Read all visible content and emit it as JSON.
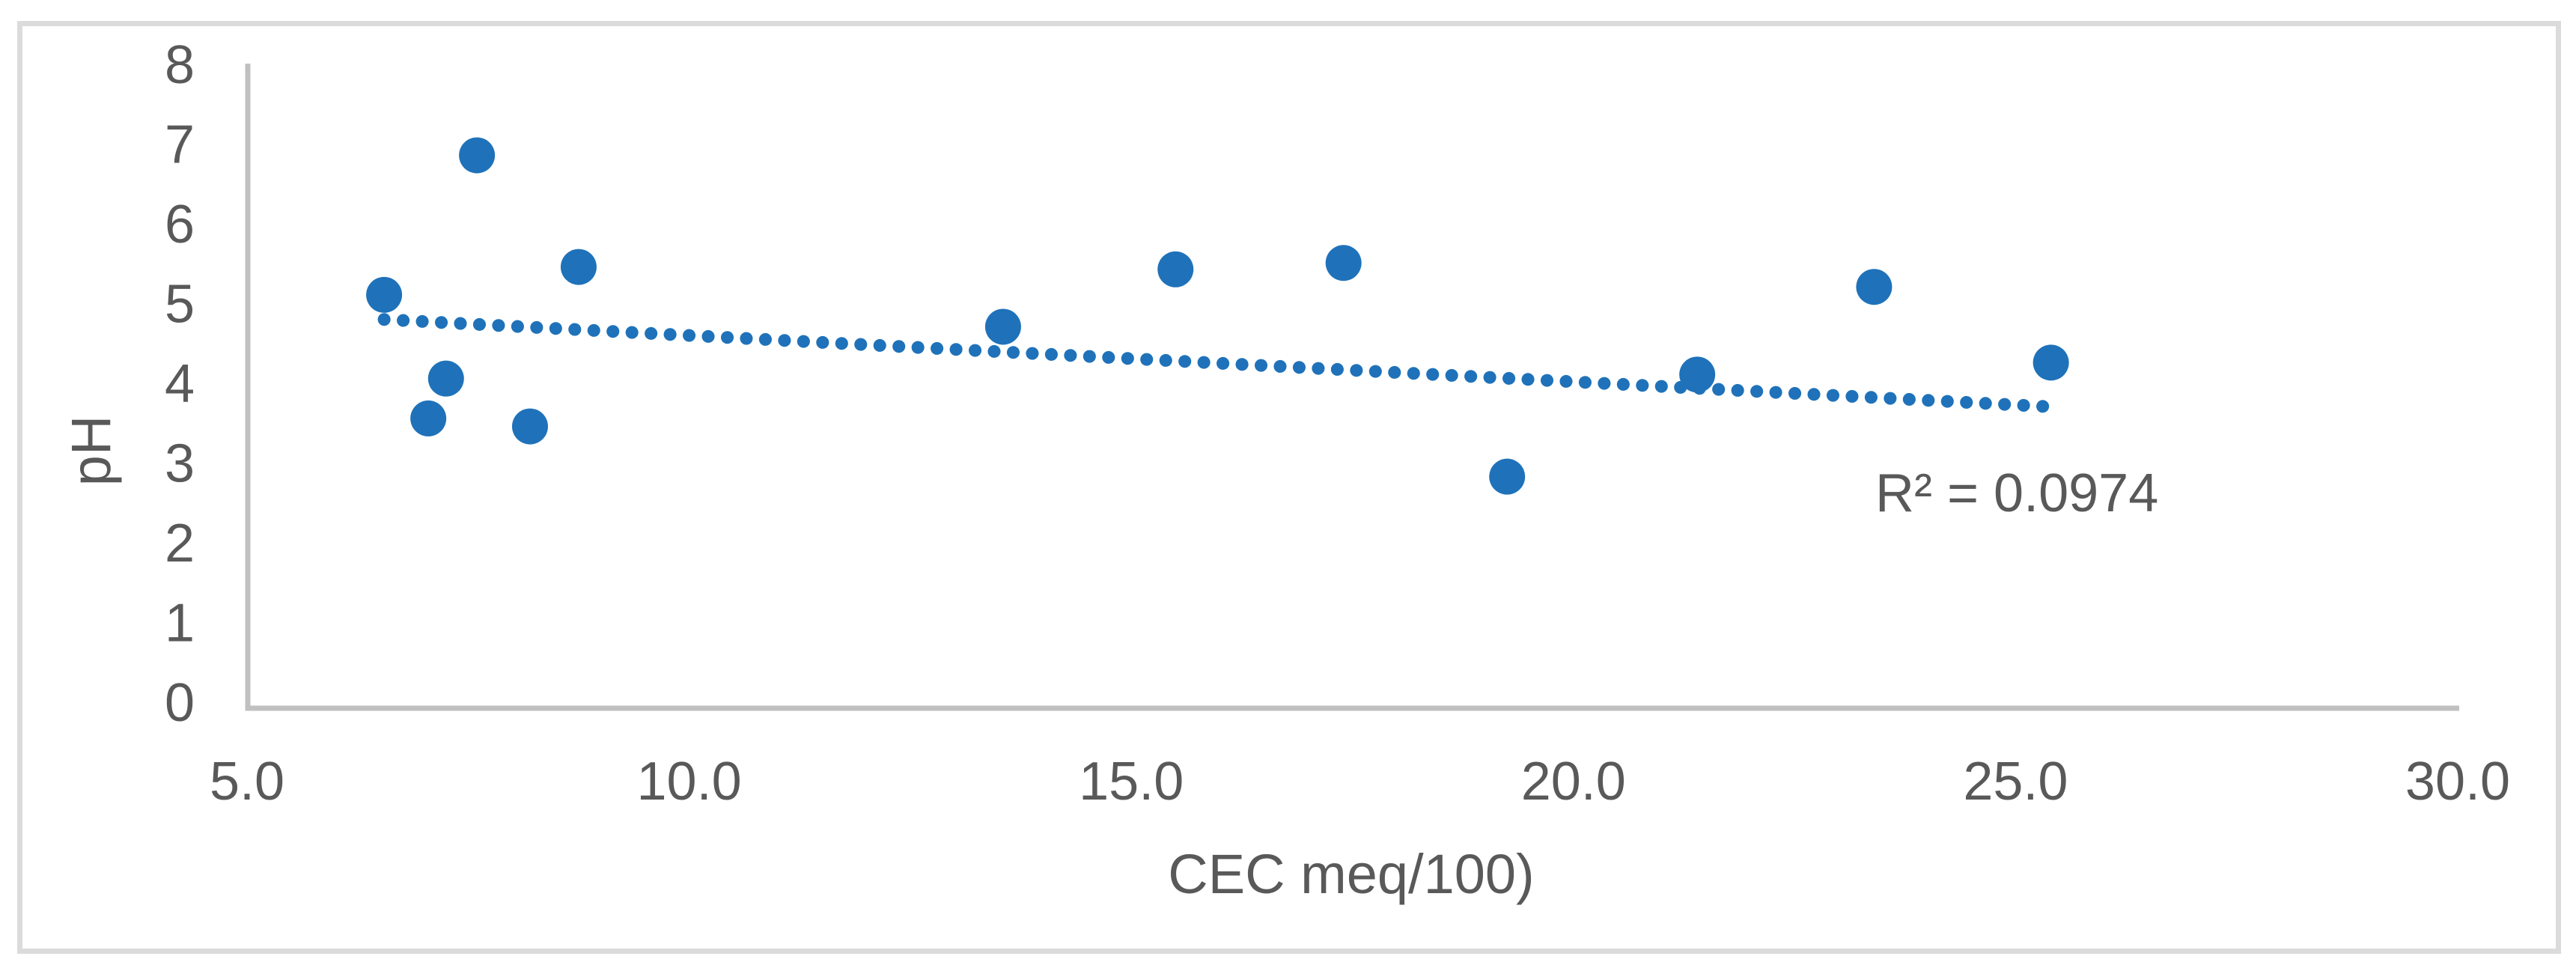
{
  "chart_data": {
    "type": "scatter",
    "title": "",
    "xlabel": "CEC meq/100)",
    "ylabel": "pH",
    "annotation": "R² = 0.0974",
    "xlim": [
      5.0,
      30.0
    ],
    "ylim": [
      0,
      8
    ],
    "grid": false,
    "legend": null,
    "x_ticks": {
      "values": [
        5,
        10,
        15,
        20,
        25,
        30
      ],
      "labels": [
        "5.0",
        "10.0",
        "15.0",
        "20.0",
        "25.0",
        "30.0"
      ]
    },
    "y_ticks": {
      "values": [
        0,
        1,
        2,
        3,
        4,
        5,
        6,
        7,
        8
      ],
      "labels": [
        "0",
        "1",
        "2",
        "3",
        "4",
        "5",
        "6",
        "7",
        "8"
      ]
    },
    "points": [
      [
        6.55,
        5.1
      ],
      [
        7.05,
        3.55
      ],
      [
        7.25,
        4.05
      ],
      [
        7.6,
        6.85
      ],
      [
        8.2,
        3.45
      ],
      [
        8.75,
        5.45
      ],
      [
        13.55,
        4.7
      ],
      [
        15.5,
        5.42
      ],
      [
        17.4,
        5.5
      ],
      [
        19.25,
        2.82
      ],
      [
        21.4,
        4.1
      ],
      [
        23.4,
        5.2
      ],
      [
        25.4,
        4.25
      ]
    ],
    "trendline": {
      "style": "dotted",
      "slope": -0.0581,
      "intercept": 5.172,
      "x_start": 6.55,
      "x_end": 25.38,
      "r_squared": 0.0974
    },
    "colors": {
      "marker": "#1F72B9",
      "trendline": "#1F72B9",
      "text": "#595959",
      "axis": "#C0C0C0",
      "frame_border": "#DBDBDB",
      "background": "#FFFFFF"
    }
  }
}
